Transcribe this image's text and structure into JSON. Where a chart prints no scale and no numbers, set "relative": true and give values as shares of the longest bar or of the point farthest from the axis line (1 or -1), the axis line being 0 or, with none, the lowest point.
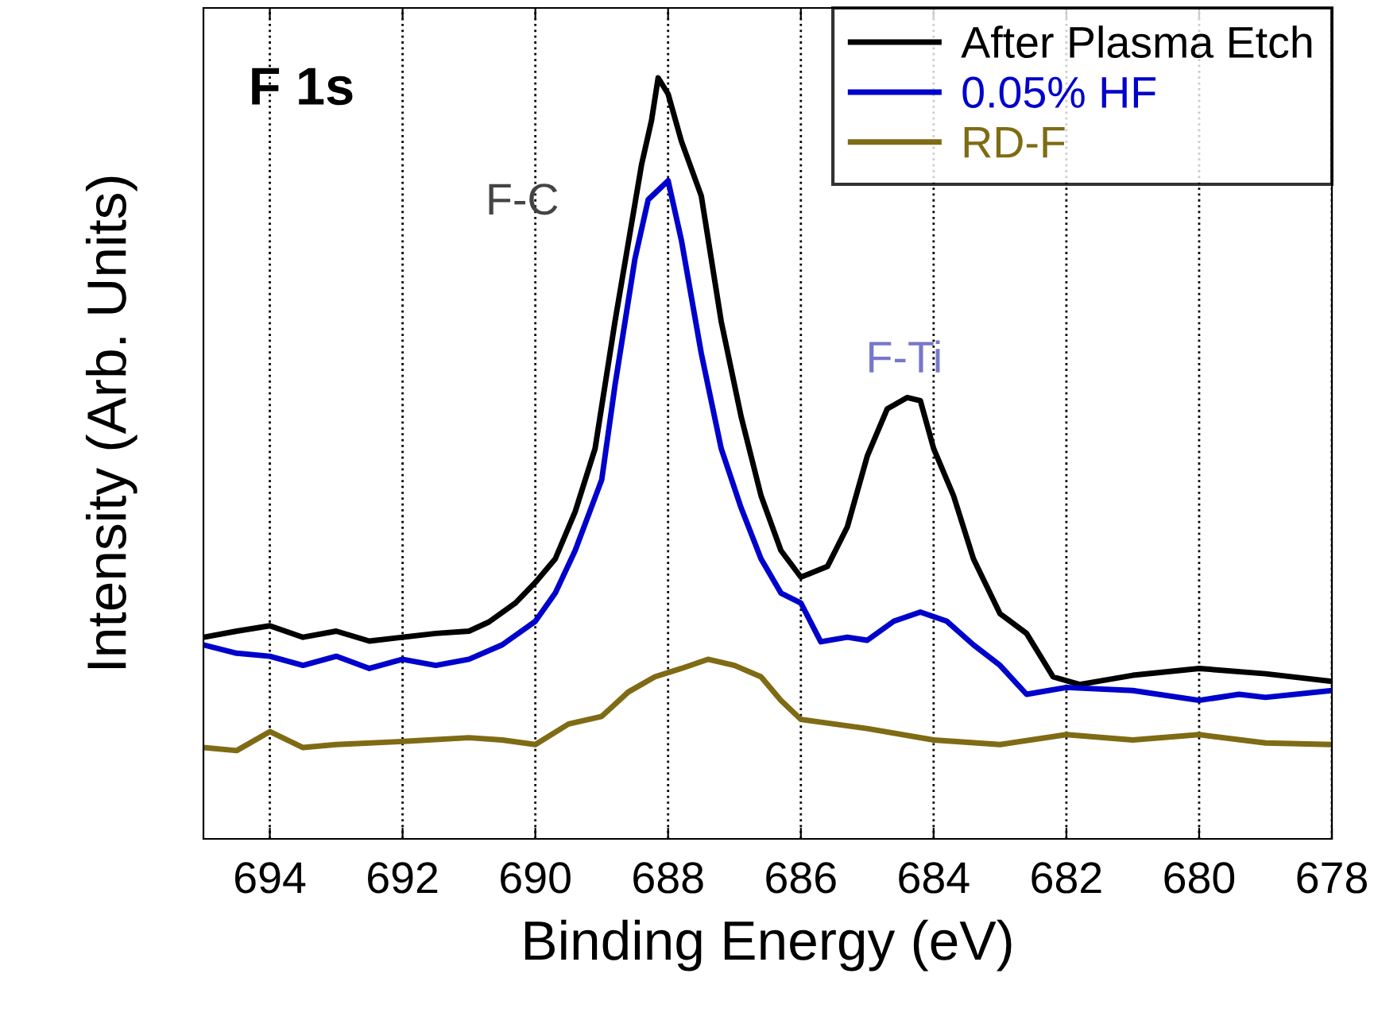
{
  "chart_data": {
    "type": "line",
    "relative": true,
    "xlabel": "Binding Energy (eV)",
    "ylabel": "Intensity (Arb. Units)",
    "xlim": [
      695,
      678
    ],
    "xticks": [
      694,
      692,
      690,
      688,
      686,
      684,
      682,
      680,
      678
    ],
    "grid": "x",
    "legend": "top right",
    "line_style": "solid",
    "marker": "none",
    "annotations": [
      "F 1s",
      "F-C",
      "F-Ti"
    ],
    "series": [
      {
        "name": "After Plasma Etch",
        "color": "#000000",
        "x": [
          695,
          694.5,
          694,
          693.5,
          693,
          692.5,
          692,
          691.5,
          691,
          690.7,
          690.3,
          690,
          689.7,
          689.4,
          689.1,
          688.8,
          688.6,
          688.4,
          688.25,
          688.15,
          688.0,
          687.8,
          687.5,
          687.2,
          686.9,
          686.6,
          686.3,
          686.0,
          685.6,
          685.3,
          685.0,
          684.7,
          684.4,
          684.2,
          684.0,
          683.7,
          683.4,
          683.0,
          682.6,
          682.2,
          681.8,
          681,
          680,
          679,
          678
        ],
        "values": [
          0.265,
          0.273,
          0.28,
          0.265,
          0.273,
          0.26,
          0.265,
          0.27,
          0.273,
          0.285,
          0.31,
          0.337,
          0.368,
          0.43,
          0.513,
          0.68,
          0.783,
          0.886,
          0.944,
          1.0,
          0.979,
          0.917,
          0.845,
          0.68,
          0.555,
          0.451,
          0.379,
          0.344,
          0.358,
          0.41,
          0.503,
          0.565,
          0.58,
          0.576,
          0.513,
          0.451,
          0.368,
          0.296,
          0.27,
          0.213,
          0.203,
          0.215,
          0.224,
          0.217,
          0.207
        ]
      },
      {
        "name": "0.05% HF",
        "color": "#0000cc",
        "x": [
          695,
          694.5,
          694,
          693.5,
          693,
          692.5,
          692,
          691.5,
          691,
          690.5,
          690,
          689.7,
          689.4,
          689,
          688.8,
          688.5,
          688.3,
          688.0,
          687.8,
          687.5,
          687.2,
          686.9,
          686.6,
          686.3,
          686.0,
          685.7,
          685.3,
          685,
          684.6,
          684.2,
          683.8,
          683.4,
          683.0,
          682.6,
          682,
          681,
          680,
          679.4,
          679,
          678
        ],
        "values": [
          0.255,
          0.244,
          0.24,
          0.228,
          0.24,
          0.224,
          0.236,
          0.228,
          0.236,
          0.255,
          0.286,
          0.323,
          0.379,
          0.472,
          0.596,
          0.762,
          0.84,
          0.865,
          0.787,
          0.638,
          0.513,
          0.435,
          0.368,
          0.323,
          0.31,
          0.259,
          0.265,
          0.261,
          0.286,
          0.298,
          0.286,
          0.255,
          0.228,
          0.19,
          0.199,
          0.195,
          0.182,
          0.19,
          0.186,
          0.195
        ]
      },
      {
        "name": "RD-F",
        "color": "#7f6b14",
        "x": [
          695,
          694.5,
          694,
          693.5,
          693,
          692,
          691,
          690.5,
          690,
          689.5,
          689,
          688.6,
          688.2,
          687.8,
          687.4,
          687.0,
          686.6,
          686.3,
          686,
          685.5,
          685,
          684,
          683,
          682,
          681,
          680,
          679,
          678
        ],
        "values": [
          0.12,
          0.116,
          0.141,
          0.12,
          0.124,
          0.128,
          0.133,
          0.13,
          0.124,
          0.151,
          0.161,
          0.193,
          0.213,
          0.224,
          0.236,
          0.228,
          0.213,
          0.182,
          0.157,
          0.151,
          0.145,
          0.13,
          0.124,
          0.137,
          0.13,
          0.137,
          0.126,
          0.124
        ]
      }
    ]
  }
}
